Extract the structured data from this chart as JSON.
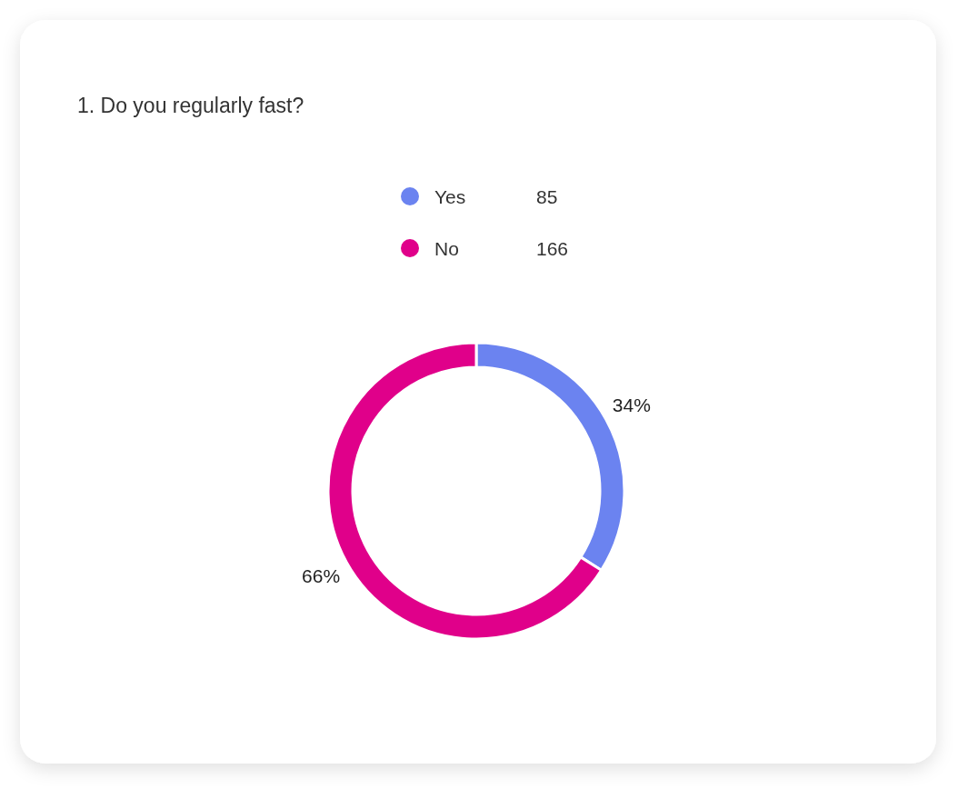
{
  "chart_data": {
    "type": "donut",
    "title": "1. Do you regularly fast?",
    "categories": [
      "Yes",
      "No"
    ],
    "values": [
      34,
      66
    ],
    "colors": [
      "#6b83f0",
      "#e0008a"
    ],
    "value_labels": [
      "34%",
      "66%"
    ],
    "annotations": [
      "85",
      "166"
    ],
    "legend": "top"
  }
}
